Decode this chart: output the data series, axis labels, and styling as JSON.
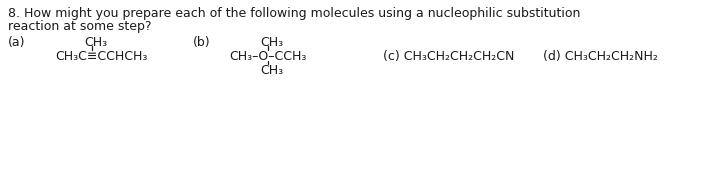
{
  "title_line1": "8. How might you prepare each of the following molecules using a nucleophilic substitution",
  "title_line2": "reaction at some step?",
  "bg_color": "#ffffff",
  "text_color": "#1a1a1a",
  "font_size": 9.0,
  "label_a": "(a)",
  "label_b": "(b)",
  "label_c": "(c) CH₃CH₂CH₂CH₂CN",
  "label_d": "(d) CH₃CH₂CH₂NH₂",
  "mol_a_ch3_top": "CH₃",
  "mol_a_main": "CH₃C≡CCHCH₃",
  "mol_b_ch3_top": "CH₃",
  "mol_b_main": "CH₃–O–CCH₃",
  "mol_b_ch3_bot": "CH₃",
  "figw": 7.16,
  "figh": 1.72,
  "dpi": 100
}
